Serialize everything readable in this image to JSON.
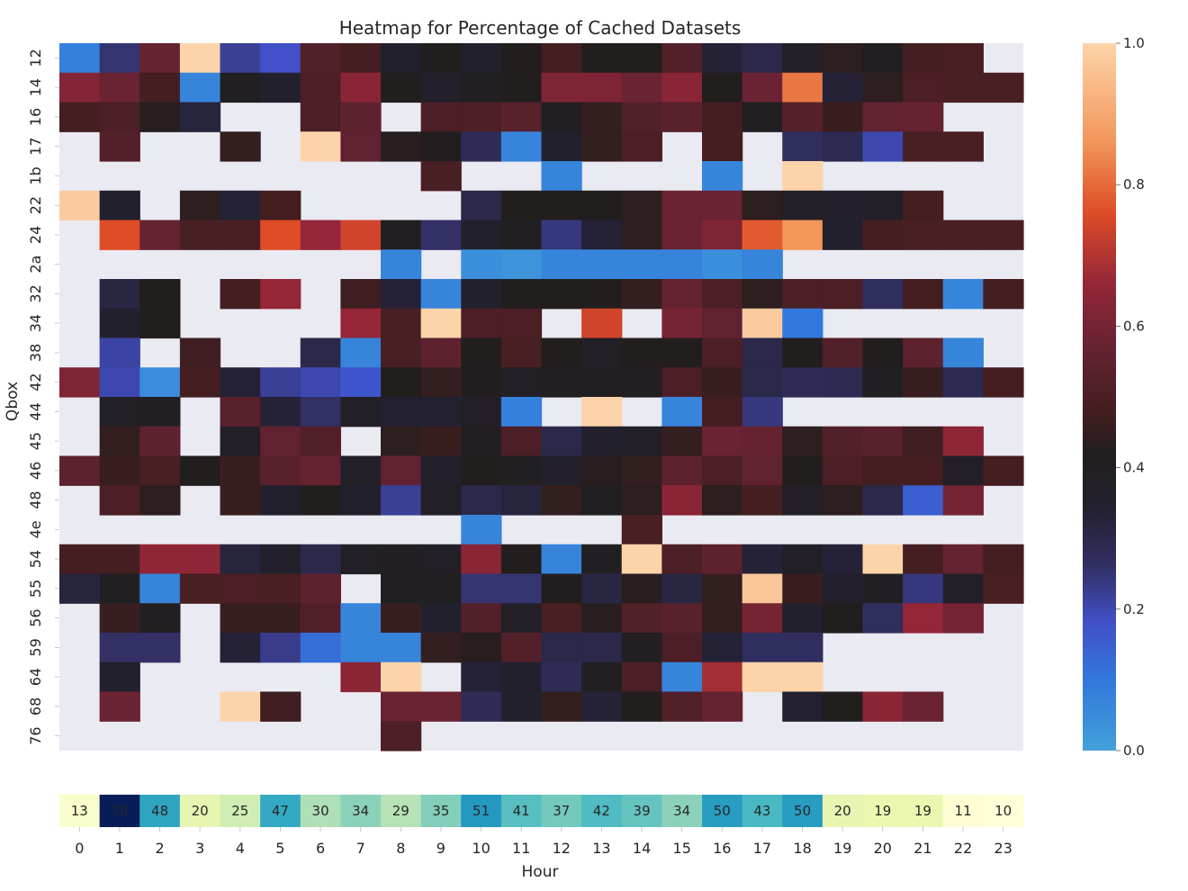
{
  "chart_data": [
    {
      "type": "heatmap",
      "title": "Heatmap for Percentage of Cached Datasets",
      "xlabel": "",
      "ylabel": "Qbox",
      "grid": false,
      "legend": "colorbar-right",
      "missing_color": "#eaeaf2",
      "colormap": "icefire",
      "zlim": [
        0,
        1
      ],
      "colorbar_ticks": [
        "0.0",
        "0.2",
        "0.4",
        "0.6",
        "0.8",
        "1.0"
      ],
      "colorbar_tick_values": [
        0,
        0.2,
        0.4,
        0.6,
        0.8,
        1
      ],
      "x": [
        0,
        1,
        2,
        3,
        4,
        5,
        6,
        7,
        8,
        9,
        10,
        11,
        12,
        13,
        14,
        15,
        16,
        17,
        18,
        19,
        20,
        21,
        22,
        23
      ],
      "y": [
        "12",
        "14",
        "16",
        "17",
        "1b",
        "22",
        "24",
        "2a",
        "32",
        "34",
        "38",
        "42",
        "44",
        "45",
        "46",
        "48",
        "4e",
        "54",
        "55",
        "56",
        "59",
        "64",
        "68",
        "76"
      ],
      "values": [
        [
          0.08,
          0.25,
          0.57,
          1.0,
          0.22,
          0.18,
          0.52,
          0.48,
          0.35,
          0.42,
          0.35,
          0.42,
          0.48,
          0.42,
          0.42,
          0.52,
          0.33,
          0.3,
          0.38,
          0.44,
          0.4,
          0.48,
          0.49,
          null
        ],
        [
          0.63,
          0.58,
          0.48,
          0.07,
          0.4,
          0.35,
          0.5,
          0.64,
          0.42,
          0.36,
          0.4,
          0.42,
          0.62,
          0.62,
          0.58,
          0.64,
          0.42,
          0.58,
          0.82,
          0.33,
          0.44,
          0.5,
          0.49,
          0.49
        ],
        [
          0.48,
          0.5,
          0.43,
          0.32,
          null,
          null,
          0.5,
          0.55,
          null,
          0.5,
          0.5,
          0.54,
          0.4,
          0.45,
          0.52,
          0.54,
          0.48,
          0.4,
          0.53,
          0.46,
          0.56,
          0.57,
          null,
          null
        ],
        [
          null,
          0.52,
          null,
          null,
          0.45,
          null,
          1.0,
          0.56,
          0.43,
          0.41,
          0.28,
          0.07,
          0.35,
          0.45,
          0.5,
          null,
          0.48,
          null,
          0.27,
          0.29,
          0.2,
          0.49,
          0.49,
          null
        ],
        [
          null,
          null,
          null,
          null,
          null,
          null,
          null,
          null,
          null,
          0.49,
          null,
          null,
          0.07,
          null,
          null,
          null,
          0.07,
          null,
          1.0,
          null,
          null,
          null,
          null,
          null
        ],
        [
          0.98,
          0.35,
          null,
          0.44,
          0.33,
          0.48,
          null,
          null,
          null,
          null,
          0.3,
          0.42,
          0.42,
          0.42,
          0.44,
          0.58,
          0.58,
          0.44,
          0.38,
          0.36,
          0.38,
          0.48,
          null,
          null
        ],
        [
          null,
          0.76,
          0.57,
          0.49,
          0.49,
          0.76,
          0.66,
          0.74,
          0.4,
          0.26,
          0.35,
          0.4,
          0.24,
          0.33,
          0.44,
          0.58,
          0.62,
          0.78,
          0.86,
          0.35,
          0.48,
          0.49,
          0.49,
          0.49
        ],
        [
          null,
          null,
          null,
          null,
          null,
          null,
          null,
          null,
          0.07,
          null,
          0.04,
          0.03,
          0.07,
          0.07,
          0.07,
          0.07,
          0.04,
          0.07,
          null,
          null,
          null,
          null,
          null,
          null
        ],
        [
          null,
          0.31,
          0.42,
          null,
          0.48,
          0.66,
          null,
          0.47,
          0.33,
          0.07,
          0.35,
          0.42,
          0.42,
          0.42,
          0.45,
          0.57,
          0.5,
          0.44,
          0.5,
          0.5,
          0.27,
          0.48,
          0.07,
          0.48
        ],
        [
          null,
          0.35,
          0.42,
          null,
          null,
          null,
          null,
          0.66,
          0.49,
          1.0,
          0.5,
          0.5,
          null,
          0.74,
          null,
          0.6,
          0.56,
          0.98,
          0.1,
          null,
          null,
          null,
          null,
          null
        ],
        [
          null,
          0.21,
          null,
          0.47,
          null,
          null,
          0.3,
          0.07,
          0.49,
          0.55,
          0.42,
          0.49,
          0.42,
          0.38,
          0.42,
          0.42,
          0.5,
          0.3,
          0.42,
          0.52,
          0.42,
          0.55,
          0.07,
          null
        ],
        [
          0.62,
          0.2,
          0.05,
          0.48,
          0.33,
          0.22,
          0.2,
          0.17,
          0.42,
          0.45,
          0.41,
          0.38,
          0.4,
          0.4,
          0.4,
          0.5,
          0.46,
          0.3,
          0.28,
          0.29,
          0.4,
          0.46,
          0.29,
          0.48
        ],
        [
          null,
          0.38,
          0.4,
          null,
          0.54,
          0.33,
          0.26,
          0.38,
          0.34,
          0.34,
          0.38,
          0.08,
          null,
          1.0,
          null,
          0.07,
          0.48,
          0.24,
          null,
          null,
          null,
          null,
          null,
          null
        ],
        [
          null,
          0.45,
          0.55,
          null,
          0.38,
          0.56,
          0.52,
          null,
          0.44,
          0.46,
          0.4,
          0.5,
          0.3,
          0.36,
          0.38,
          0.45,
          0.58,
          0.57,
          0.44,
          0.52,
          0.54,
          0.47,
          0.65,
          null
        ],
        [
          0.55,
          0.46,
          0.49,
          0.42,
          0.46,
          0.54,
          0.57,
          0.38,
          0.56,
          0.36,
          0.42,
          0.4,
          0.36,
          0.43,
          0.45,
          0.55,
          0.5,
          0.56,
          0.42,
          0.5,
          0.48,
          0.48,
          0.38,
          0.48
        ],
        [
          null,
          0.5,
          0.44,
          null,
          0.46,
          0.35,
          0.42,
          0.35,
          0.22,
          0.38,
          0.3,
          0.32,
          0.45,
          0.4,
          0.44,
          0.64,
          0.44,
          0.48,
          0.38,
          0.44,
          0.3,
          0.15,
          0.6,
          null
        ],
        [
          null,
          null,
          null,
          null,
          null,
          null,
          null,
          null,
          null,
          null,
          0.07,
          null,
          null,
          null,
          0.49,
          null,
          null,
          null,
          null,
          null,
          null,
          null,
          null,
          null
        ],
        [
          0.48,
          0.48,
          0.65,
          0.65,
          0.32,
          0.36,
          0.3,
          0.38,
          0.4,
          0.38,
          0.64,
          0.42,
          0.07,
          0.4,
          1.0,
          0.5,
          0.55,
          0.33,
          0.38,
          0.33,
          1.0,
          0.48,
          0.57,
          0.48
        ],
        [
          0.32,
          0.4,
          0.07,
          0.49,
          0.5,
          0.49,
          0.55,
          null,
          0.4,
          0.4,
          0.25,
          0.25,
          0.41,
          0.31,
          0.43,
          0.31,
          0.45,
          0.97,
          0.46,
          0.36,
          0.4,
          0.24,
          0.38,
          0.49
        ],
        [
          null,
          0.46,
          0.4,
          null,
          0.46,
          0.46,
          0.52,
          0.07,
          0.46,
          0.35,
          0.52,
          0.38,
          0.49,
          0.43,
          0.52,
          0.54,
          0.45,
          0.6,
          0.35,
          0.42,
          0.27,
          0.66,
          0.6,
          null
        ],
        [
          null,
          0.26,
          0.26,
          null,
          0.33,
          0.23,
          0.12,
          0.07,
          0.07,
          0.45,
          0.43,
          0.52,
          0.3,
          0.3,
          0.4,
          0.5,
          0.33,
          0.27,
          0.27,
          null,
          null,
          null,
          null,
          null
        ],
        [
          null,
          0.35,
          null,
          null,
          null,
          null,
          null,
          0.64,
          1.0,
          null,
          0.33,
          0.35,
          0.28,
          0.4,
          0.5,
          0.07,
          0.68,
          1.0,
          1.0,
          null,
          null,
          null,
          null,
          null
        ],
        [
          null,
          0.58,
          null,
          null,
          1.0,
          0.47,
          null,
          null,
          0.58,
          0.58,
          0.28,
          0.35,
          0.45,
          0.33,
          0.42,
          0.52,
          0.57,
          null,
          0.34,
          0.42,
          0.64,
          0.58,
          null,
          null
        ],
        [
          null,
          null,
          null,
          null,
          null,
          null,
          null,
          null,
          0.5,
          null,
          null,
          null,
          null,
          null,
          null,
          null,
          null,
          null,
          null,
          null,
          null,
          null,
          null,
          null
        ]
      ]
    },
    {
      "type": "heatmap",
      "title": "",
      "xlabel": "Hour",
      "ylabel": "",
      "colormap": "YlGnBu",
      "zlim": [
        10,
        78
      ],
      "categories": [
        "0",
        "1",
        "2",
        "3",
        "4",
        "5",
        "6",
        "7",
        "8",
        "9",
        "10",
        "11",
        "12",
        "13",
        "14",
        "15",
        "16",
        "17",
        "18",
        "19",
        "20",
        "21",
        "22",
        "23"
      ],
      "values": [
        13,
        78,
        48,
        20,
        25,
        47,
        30,
        34,
        29,
        35,
        51,
        41,
        37,
        42,
        39,
        34,
        50,
        43,
        50,
        20,
        19,
        19,
        11,
        10
      ]
    }
  ]
}
